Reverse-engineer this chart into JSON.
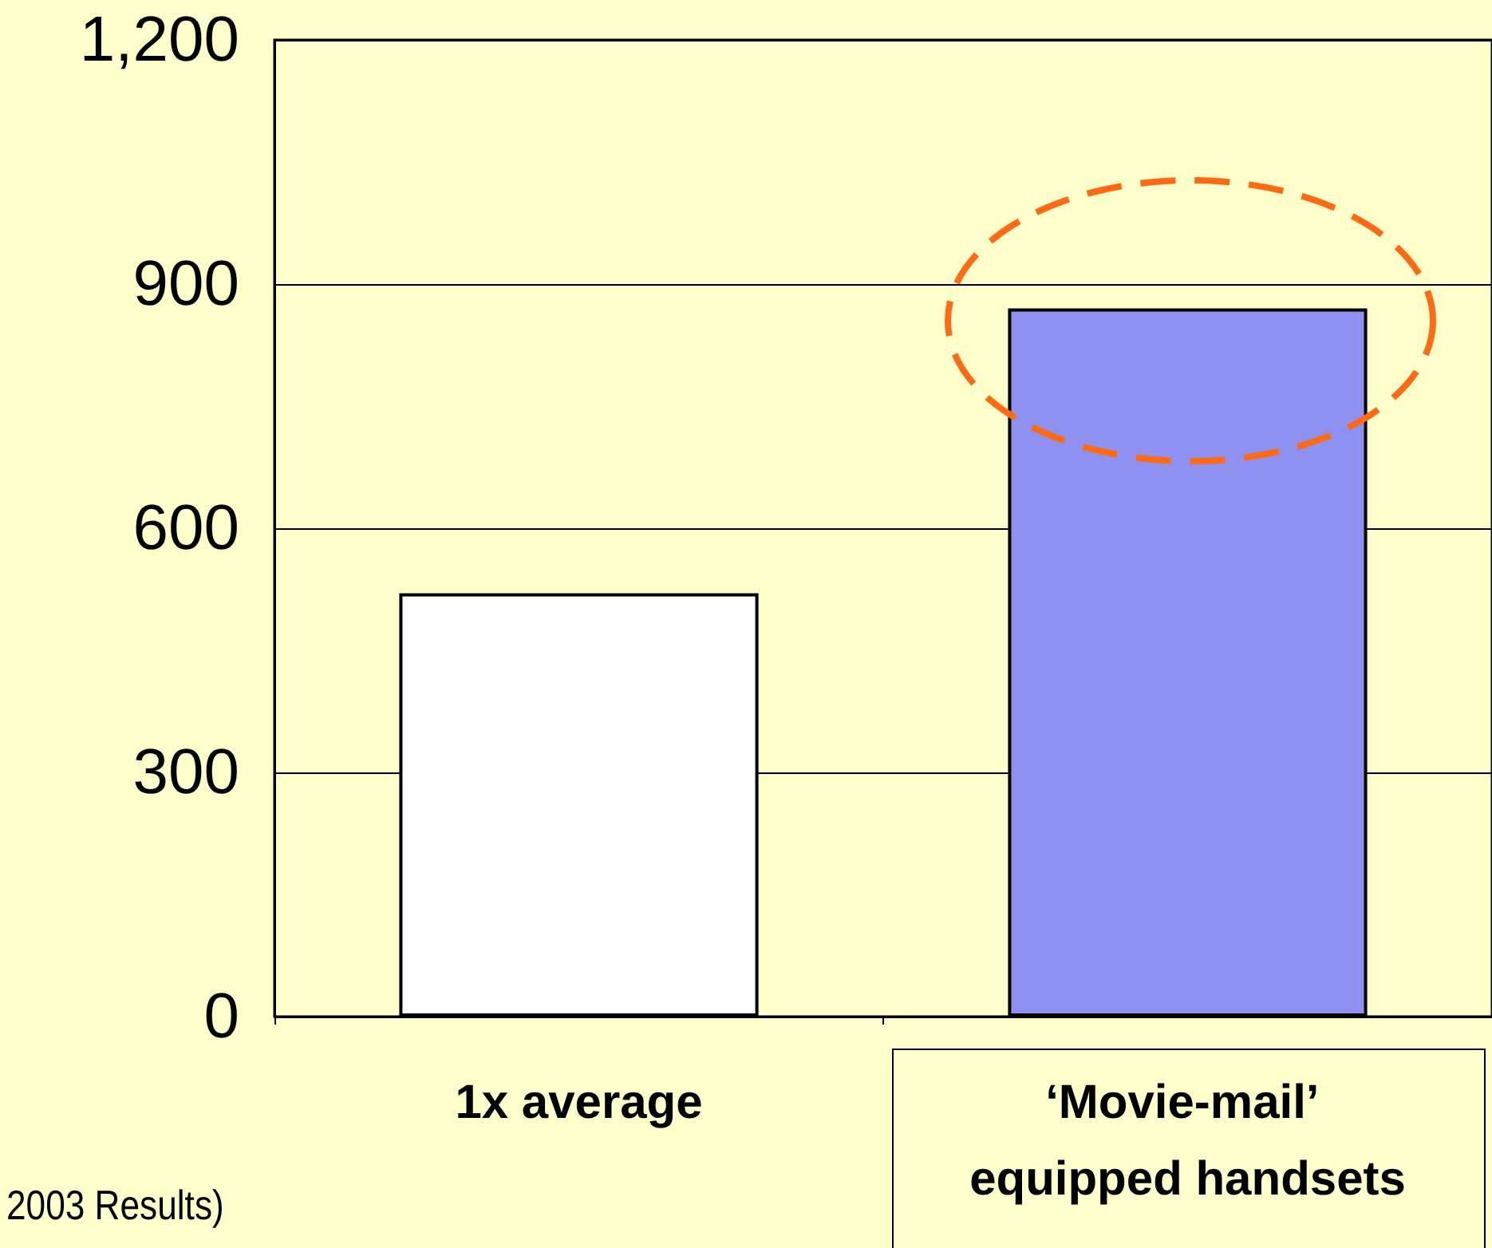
{
  "chart_data": {
    "type": "bar",
    "categories": [
      "1x average",
      "‘Movie-mail’ equipped handsets"
    ],
    "values": [
      520,
      870
    ],
    "colors": [
      "#ffffff",
      "#8f91f0"
    ],
    "ylim": [
      0,
      1200
    ],
    "yticks": [
      0,
      300,
      600,
      900,
      {
        "value": 1200,
        "label": "1,200"
      }
    ],
    "grid": "y",
    "annotations": [
      "2003 Results)"
    ]
  }
}
